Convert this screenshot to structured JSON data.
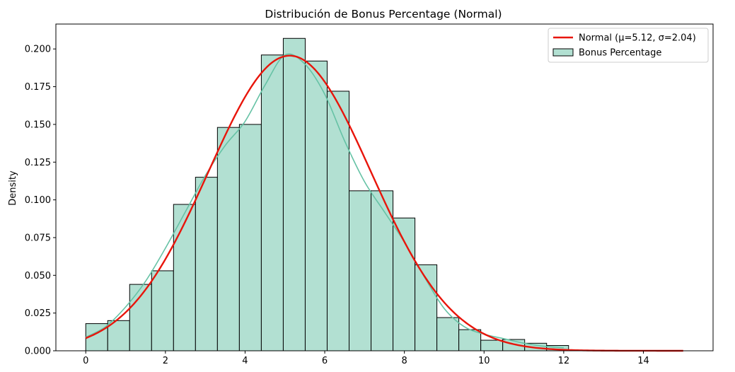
{
  "chart_data": {
    "type": "bar",
    "title": "Distribución de Bonus Percentage (Normal)",
    "xlabel": "",
    "ylabel": "Density",
    "xlim": [
      -0.75,
      15.75
    ],
    "ylim": [
      0,
      0.2165
    ],
    "x_ticks": [
      0,
      2,
      4,
      6,
      8,
      10,
      12,
      14
    ],
    "y_ticks": [
      0.0,
      0.025,
      0.05,
      0.075,
      0.1,
      0.125,
      0.15,
      0.175,
      0.2
    ],
    "y_tick_labels": [
      "0.000",
      "0.025",
      "0.050",
      "0.075",
      "0.100",
      "0.125",
      "0.150",
      "0.175",
      "0.200"
    ],
    "grid": false,
    "legend_position": "top-right",
    "histogram": {
      "name": "Bonus Percentage",
      "bin_start": 0,
      "bin_width": 0.551,
      "densities": [
        0.018,
        0.02,
        0.044,
        0.053,
        0.097,
        0.115,
        0.148,
        0.15,
        0.196,
        0.207,
        0.192,
        0.172,
        0.106,
        0.106,
        0.088,
        0.057,
        0.022,
        0.014,
        0.007,
        0.0075,
        0.005,
        0.0035
      ],
      "kde": {
        "x": [
          0,
          0.5,
          1,
          1.5,
          2,
          2.5,
          3,
          3.5,
          4,
          4.5,
          5,
          5.5,
          6,
          6.5,
          7,
          7.5,
          8,
          8.5,
          9,
          9.5,
          10,
          10.5,
          11,
          11.5,
          12
        ],
        "y": [
          0.009,
          0.016,
          0.029,
          0.046,
          0.068,
          0.092,
          0.116,
          0.136,
          0.152,
          0.176,
          0.196,
          0.19,
          0.17,
          0.139,
          0.112,
          0.092,
          0.072,
          0.049,
          0.028,
          0.016,
          0.011,
          0.008,
          0.005,
          0.003,
          0.002
        ]
      },
      "fill_color": "#b2e0d2",
      "edge_color": "#000000",
      "kde_color": "#66c2a5"
    },
    "series": [
      {
        "name": "Normal (μ=5.12, σ=2.04)",
        "type": "line",
        "mu": 5.12,
        "sigma": 2.04,
        "x_range": [
          0,
          15
        ],
        "color": "#e8150b"
      }
    ]
  }
}
